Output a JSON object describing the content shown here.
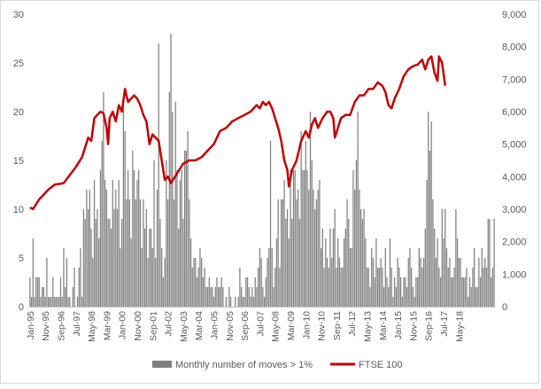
{
  "chart_data": {
    "type": "bar+line",
    "x_tick_labels": [
      "Jan-95",
      "Nov-95",
      "Sep-96",
      "Jul-97",
      "May-98",
      "Mar-99",
      "Jan-00",
      "Nov-00",
      "Sep-01",
      "Jul-02",
      "May-03",
      "Mar-04",
      "Jan-05",
      "Nov-05",
      "Sep-06",
      "Jul-07",
      "May-08",
      "Mar-09",
      "Jan-10",
      "Nov-10",
      "Sep-11",
      "Jul-12",
      "May-13",
      "Mar-14",
      "Jan-15",
      "Nov-15",
      "Sep-16",
      "Jul-17",
      "May-18"
    ],
    "x_range": [
      "Jan-95",
      "Nov-18"
    ],
    "y_left": {
      "range": [
        0,
        30
      ],
      "ticks": [
        "0",
        "5",
        "10",
        "15",
        "20",
        "25",
        "30"
      ]
    },
    "y_right": {
      "range": [
        0,
        9000
      ],
      "ticks": [
        "0",
        "1,000",
        "2,000",
        "3,000",
        "4,000",
        "5,000",
        "6,000",
        "7,000",
        "8,000",
        "9,000"
      ]
    },
    "legend_position": "bottom",
    "grid": false,
    "series": [
      {
        "name": "Monthly number of moves > 1%",
        "type": "bar",
        "axis": "left",
        "color": "#808080",
        "values": [
          3,
          1,
          7,
          1,
          3,
          3,
          3,
          1,
          2,
          2,
          1,
          5,
          1,
          1,
          1,
          3,
          1,
          1,
          1,
          1,
          3,
          1,
          6,
          2,
          5,
          1,
          1,
          0,
          2,
          4,
          0,
          1,
          4,
          6,
          1,
          10,
          9,
          12,
          10,
          12,
          8,
          5,
          13,
          9,
          10,
          7,
          14,
          17,
          22,
          13,
          12,
          9,
          9,
          8,
          13,
          10,
          12,
          10,
          13,
          6,
          9,
          21,
          18,
          11,
          14,
          11,
          7,
          16,
          14,
          11,
          13,
          14,
          11,
          6,
          11,
          8,
          10,
          5,
          8,
          8,
          6,
          15,
          5,
          12,
          27,
          9,
          6,
          3,
          5,
          15,
          11,
          22,
          28,
          20,
          11,
          21,
          14,
          8,
          13,
          14,
          9,
          16,
          16,
          18,
          11,
          7,
          4,
          5,
          5,
          3,
          4,
          6,
          5,
          3,
          4,
          2,
          2,
          3,
          2,
          2,
          1,
          2,
          3,
          2,
          2,
          3,
          2,
          0,
          1,
          0,
          2,
          1,
          0,
          0,
          1,
          0,
          1,
          4,
          2,
          1,
          1,
          3,
          3,
          2,
          1,
          2,
          1,
          3,
          2,
          4,
          6,
          5,
          2,
          1,
          3,
          5,
          6,
          17,
          6,
          2,
          4,
          7,
          11,
          4,
          11,
          11,
          13,
          9,
          10,
          7,
          14,
          9,
          14,
          14,
          11,
          12,
          9,
          18,
          14,
          14,
          17,
          14,
          12,
          20,
          15,
          12,
          10,
          11,
          12,
          13,
          6,
          8,
          4,
          7,
          5,
          4,
          8,
          5,
          8,
          10,
          4,
          7,
          5,
          4,
          4,
          7,
          8,
          11,
          9,
          6,
          6,
          14,
          12,
          15,
          20,
          12,
          10,
          9,
          10,
          7,
          4,
          4,
          2,
          6,
          5,
          3,
          7,
          4,
          4,
          5,
          4,
          2,
          6,
          3,
          2,
          7,
          4,
          1,
          3,
          2,
          5,
          4,
          3,
          1,
          3,
          3,
          2,
          5,
          6,
          4,
          2,
          1,
          3,
          3,
          6,
          5,
          4,
          5,
          8,
          13,
          20,
          16,
          19,
          11,
          8,
          5,
          7,
          4,
          3,
          10,
          7,
          10,
          6,
          4,
          5,
          3,
          3,
          4,
          10,
          7,
          5,
          5,
          3,
          3,
          3,
          4,
          1,
          3,
          2,
          4,
          6,
          2,
          2,
          5,
          3,
          6,
          4,
          5,
          4,
          9,
          9,
          3,
          4,
          9
        ]
      },
      {
        "name": "FTSE 100",
        "type": "line",
        "axis": "right",
        "color": "#c00000",
        "points": [
          [
            0,
            3050
          ],
          [
            2,
            3000
          ],
          [
            6,
            3300
          ],
          [
            12,
            3600
          ],
          [
            16,
            3750
          ],
          [
            22,
            3800
          ],
          [
            26,
            4050
          ],
          [
            30,
            4300
          ],
          [
            34,
            4600
          ],
          [
            36,
            4900
          ],
          [
            38,
            5200
          ],
          [
            40,
            5100
          ],
          [
            42,
            5800
          ],
          [
            44,
            5900
          ],
          [
            46,
            6000
          ],
          [
            48,
            5950
          ],
          [
            50,
            5500
          ],
          [
            51,
            5000
          ],
          [
            52,
            5800
          ],
          [
            54,
            6000
          ],
          [
            56,
            5700
          ],
          [
            58,
            6200
          ],
          [
            60,
            6000
          ],
          [
            62,
            6700
          ],
          [
            64,
            6300
          ],
          [
            66,
            6400
          ],
          [
            68,
            6500
          ],
          [
            70,
            6400
          ],
          [
            72,
            6200
          ],
          [
            74,
            5900
          ],
          [
            76,
            5700
          ],
          [
            78,
            5000
          ],
          [
            80,
            5300
          ],
          [
            82,
            5200
          ],
          [
            84,
            5100
          ],
          [
            86,
            4500
          ],
          [
            88,
            3900
          ],
          [
            90,
            4000
          ],
          [
            92,
            3800
          ],
          [
            96,
            4100
          ],
          [
            100,
            4400
          ],
          [
            104,
            4500
          ],
          [
            108,
            4500
          ],
          [
            112,
            4600
          ],
          [
            116,
            4800
          ],
          [
            120,
            5000
          ],
          [
            124,
            5400
          ],
          [
            128,
            5500
          ],
          [
            132,
            5700
          ],
          [
            136,
            5800
          ],
          [
            140,
            5900
          ],
          [
            144,
            6000
          ],
          [
            148,
            6200
          ],
          [
            150,
            6100
          ],
          [
            152,
            6300
          ],
          [
            154,
            6200
          ],
          [
            156,
            6300
          ],
          [
            158,
            6100
          ],
          [
            160,
            5800
          ],
          [
            162,
            5500
          ],
          [
            164,
            5100
          ],
          [
            166,
            4500
          ],
          [
            168,
            4200
          ],
          [
            169,
            3700
          ],
          [
            171,
            4200
          ],
          [
            174,
            4500
          ],
          [
            177,
            5100
          ],
          [
            180,
            5400
          ],
          [
            182,
            5200
          ],
          [
            184,
            5600
          ],
          [
            186,
            5800
          ],
          [
            188,
            5500
          ],
          [
            191,
            5800
          ],
          [
            194,
            6000
          ],
          [
            196,
            6000
          ],
          [
            198,
            5800
          ],
          [
            199,
            5200
          ],
          [
            201,
            5500
          ],
          [
            203,
            5800
          ],
          [
            206,
            5900
          ],
          [
            209,
            5900
          ],
          [
            212,
            6300
          ],
          [
            215,
            6500
          ],
          [
            218,
            6500
          ],
          [
            221,
            6700
          ],
          [
            224,
            6700
          ],
          [
            227,
            6900
          ],
          [
            230,
            6800
          ],
          [
            232,
            6600
          ],
          [
            234,
            6200
          ],
          [
            236,
            6100
          ],
          [
            238,
            6400
          ],
          [
            241,
            6700
          ],
          [
            244,
            7100
          ],
          [
            247,
            7300
          ],
          [
            250,
            7400
          ],
          [
            253,
            7450
          ],
          [
            256,
            7600
          ],
          [
            258,
            7300
          ],
          [
            260,
            7600
          ],
          [
            262,
            7700
          ],
          [
            264,
            7200
          ],
          [
            266,
            6950
          ],
          [
            267,
            7700
          ],
          [
            269,
            7500
          ],
          [
            271,
            6800
          ]
        ]
      }
    ]
  }
}
